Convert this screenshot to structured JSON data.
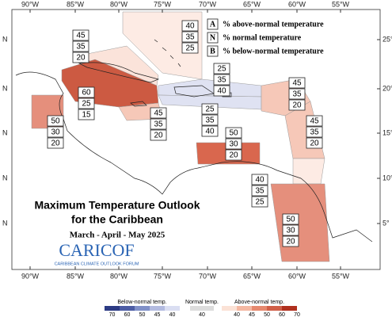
{
  "map": {
    "title_lines": [
      "Maximum Temperature Outlook",
      "for the Caribbean"
    ],
    "season": "March - April - May 2025",
    "logo": {
      "name": "CARICOF",
      "tagline": "CARIBBEAN CLIMATE OUTLOOK FORUM"
    },
    "lon_ticks": [
      "90°W",
      "85°W",
      "80°W",
      "75°W",
      "70°W",
      "65°W",
      "60°W",
      "55°W"
    ],
    "lat_ticks": [
      "25°",
      "20°",
      "15°",
      "10°",
      "5°"
    ],
    "left_ticks": [
      "N",
      "N",
      "N",
      "N",
      "N"
    ],
    "legend": [
      {
        "key": "A",
        "text": "% above-normal temperature"
      },
      {
        "key": "N",
        "text": "% normal temperature"
      },
      {
        "key": "B",
        "text": "% below-normal temperature"
      }
    ],
    "regions": [
      {
        "color": "#fdebe4",
        "values": [
          40,
          35,
          25
        ]
      },
      {
        "color": "#fbe3da",
        "values": [
          45,
          35,
          20
        ]
      },
      {
        "color": "#cc5a42",
        "values": [
          60,
          25,
          15
        ]
      },
      {
        "color": "#e58f7c",
        "values": [
          50,
          30,
          20
        ]
      },
      {
        "color": "#f6c8b8",
        "values": [
          45,
          35,
          20
        ]
      },
      {
        "color": "#dfe2f2",
        "values": [
          25,
          35,
          40
        ]
      },
      {
        "color": "#dfe2f2",
        "values": [
          25,
          35,
          40
        ]
      },
      {
        "color": "#f6c8b8",
        "values": [
          45,
          35,
          20
        ]
      },
      {
        "color": "#f6c8b8",
        "values": [
          45,
          35,
          20
        ]
      },
      {
        "color": "#d9674e",
        "values": [
          50,
          30,
          20
        ]
      },
      {
        "color": "#fdebe4",
        "values": [
          40,
          35,
          25
        ]
      },
      {
        "color": "#e58f7c",
        "values": [
          50,
          30,
          20
        ]
      }
    ],
    "colorbar": {
      "below": {
        "title": "Below-normal temp.",
        "ticks": [
          70,
          60,
          50,
          45,
          40
        ],
        "colors": [
          "#2c3b84",
          "#4c5ca4",
          "#8090c8",
          "#b3bbe0",
          "#dadef2"
        ]
      },
      "normal": {
        "title": "Normal temp.",
        "ticks": [
          40
        ],
        "colors": [
          "#dcdcdc"
        ]
      },
      "above": {
        "title": "Above-normal temp.",
        "ticks": [
          40,
          45,
          50,
          60,
          70
        ],
        "colors": [
          "#fbe2d6",
          "#f4b8a2",
          "#e6896f",
          "#d05f48",
          "#b0301e"
        ]
      }
    }
  }
}
